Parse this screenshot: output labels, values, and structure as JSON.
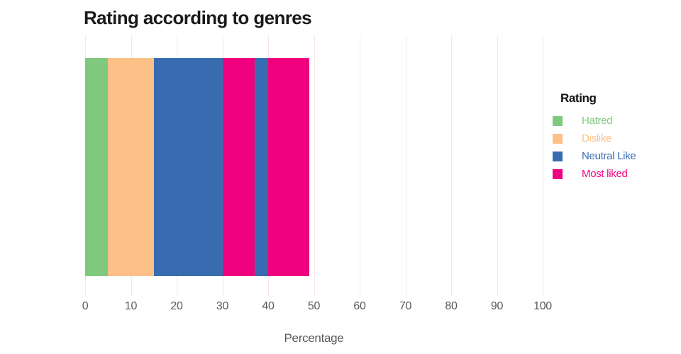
{
  "title": "Rating according to genres",
  "xlabel": "Percentage",
  "legend": {
    "title": "Rating",
    "items": [
      {
        "label": "Hatred",
        "color": "#7fc97f"
      },
      {
        "label": "Dislike",
        "color": "#fdc086"
      },
      {
        "label": "Neutral Like",
        "color": "#386cb0"
      },
      {
        "label": "Most liked",
        "color": "#f0027f"
      }
    ]
  },
  "chart_data": {
    "type": "bar",
    "orientation": "horizontal",
    "stacked": true,
    "title": "Rating according to genres",
    "xlabel": "Percentage",
    "ylabel": "",
    "xlim": [
      0,
      100
    ],
    "xticks": [
      0,
      10,
      20,
      30,
      40,
      50,
      60,
      70,
      80,
      90,
      100
    ],
    "grid": true,
    "legend_position": "right",
    "legend_title": "Rating",
    "series_colors": {
      "Hatred": "#7fc97f",
      "Dislike": "#fdc086",
      "Neutral Like": "#386cb0",
      "Most liked": "#f0027f"
    },
    "segments": [
      {
        "name": "Hatred",
        "start": 0,
        "end": 5,
        "value": 5,
        "color": "#7fc97f"
      },
      {
        "name": "Dislike",
        "start": 5,
        "end": 15,
        "value": 10,
        "color": "#fdc086"
      },
      {
        "name": "Neutral Like",
        "start": 15,
        "end": 30,
        "value": 15,
        "color": "#386cb0"
      },
      {
        "name": "Most liked",
        "start": 30,
        "end": 37,
        "value": 7,
        "color": "#f0027f"
      },
      {
        "name": "Neutral Like",
        "start": 37,
        "end": 40,
        "value": 3,
        "color": "#386cb0"
      },
      {
        "name": "Most liked",
        "start": 40,
        "end": 49,
        "value": 9,
        "color": "#f0027f"
      }
    ],
    "bar_total": 49
  },
  "colors": {
    "gridline": "#f6e7e6",
    "tick_label": "#595959",
    "axis_label": "#595959",
    "title": "#1a1a1a"
  }
}
